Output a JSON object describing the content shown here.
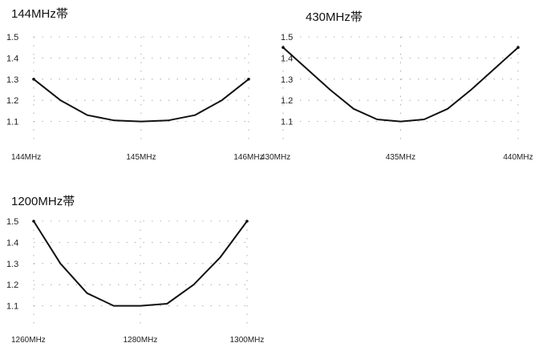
{
  "chart_data": [
    {
      "type": "line",
      "title": "144MHz帯",
      "xlabel": "",
      "ylabel": "",
      "x_tick_labels": [
        "144MHz",
        "145MHz",
        "146MHz"
      ],
      "x_ticks": [
        144,
        145,
        146
      ],
      "y_ticks": [
        "1.1",
        "1.2",
        "1.3",
        "1.4",
        "1.5"
      ],
      "xlim": [
        144,
        146
      ],
      "ylim": [
        1.0,
        1.5
      ],
      "grid": true,
      "series": [
        {
          "x": [
            144,
            144.25,
            144.5,
            144.75,
            145,
            145.25,
            145.5,
            145.75,
            146
          ],
          "y": [
            1.3,
            1.2,
            1.13,
            1.105,
            1.1,
            1.105,
            1.13,
            1.2,
            1.3
          ]
        }
      ]
    },
    {
      "type": "line",
      "title": "430MHz帯",
      "xlabel": "",
      "ylabel": "",
      "x_tick_labels": [
        "430MHz",
        "435MHz",
        "440MHz"
      ],
      "x_ticks": [
        430,
        435,
        440
      ],
      "y_ticks": [
        "1.1",
        "1.2",
        "1.3",
        "1.4",
        "1.5"
      ],
      "xlim": [
        430,
        440
      ],
      "ylim": [
        1.0,
        1.5
      ],
      "grid": true,
      "series": [
        {
          "x": [
            430,
            431,
            432,
            433,
            434,
            435,
            436,
            437,
            438,
            439,
            440
          ],
          "y": [
            1.45,
            1.35,
            1.25,
            1.16,
            1.11,
            1.1,
            1.11,
            1.16,
            1.25,
            1.35,
            1.45
          ]
        }
      ]
    },
    {
      "type": "line",
      "title": "1200MHz帯",
      "xlabel": "",
      "ylabel": "",
      "x_tick_labels": [
        "1260MHz",
        "1280MHz",
        "1300MHz"
      ],
      "x_ticks": [
        1260,
        1280,
        1300
      ],
      "y_ticks": [
        "1.1",
        "1.2",
        "1.3",
        "1.4",
        "1.5"
      ],
      "xlim": [
        1260,
        1300
      ],
      "ylim": [
        1.0,
        1.5
      ],
      "grid": true,
      "series": [
        {
          "x": [
            1260,
            1265,
            1270,
            1275,
            1280,
            1285,
            1290,
            1295,
            1300
          ],
          "y": [
            1.5,
            1.3,
            1.16,
            1.1,
            1.1,
            1.11,
            1.2,
            1.33,
            1.5
          ]
        }
      ]
    }
  ]
}
